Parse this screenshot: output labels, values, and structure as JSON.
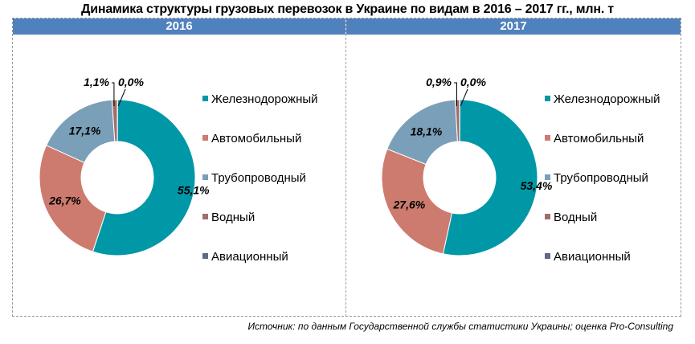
{
  "title": "Динамика структуры грузовых перевозок в Украине по видам в 2016 – 2017 гг., млн. т",
  "source": "Источник: по данным Государственной службы статистики Украины; оценка Pro-Consulting",
  "colors": {
    "header": "#4f81bd",
    "rail": "#0097a7",
    "auto": "#cd7b6e",
    "pipe": "#7a9fb8",
    "water": "#a06f6c",
    "air": "#5f6a85"
  },
  "chart_data": [
    {
      "type": "pie",
      "title": "2016",
      "categories": [
        "Железнодорожный",
        "Автомобильный",
        "Трубопроводный",
        "Водный",
        "Авиационный"
      ],
      "values": [
        55.1,
        26.7,
        17.1,
        1.1,
        0.0
      ],
      "labels": [
        "55,1%",
        "26,7%",
        "17,1%",
        "1,1%",
        "0,0%"
      ],
      "legend": "right"
    },
    {
      "type": "pie",
      "title": "2017",
      "categories": [
        "Железнодорожный",
        "Автомобильный",
        "Трубопроводный",
        "Водный",
        "Авиационный"
      ],
      "values": [
        53.4,
        27.6,
        18.1,
        0.9,
        0.0
      ],
      "labels": [
        "53,4%",
        "27,6%",
        "18,1%",
        "0,9%",
        "0,0%"
      ],
      "legend": "right"
    }
  ]
}
